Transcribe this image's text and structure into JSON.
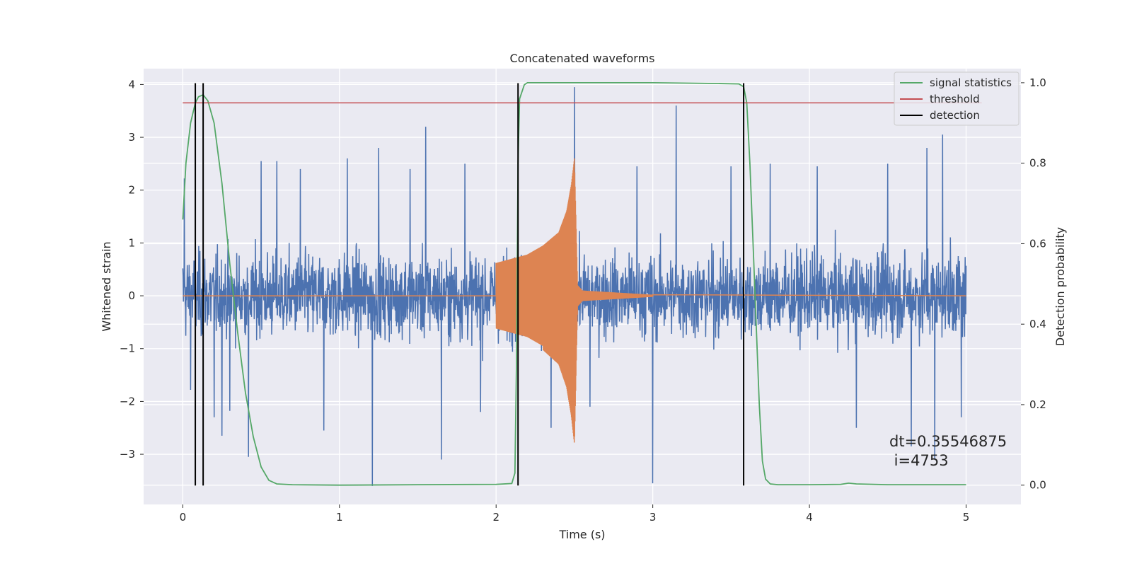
{
  "chart_data": {
    "type": "line",
    "title": "Concatenated waveforms",
    "xlabel": "Time (s)",
    "ylabel": "Whitened strain",
    "y2label": "Detection probability",
    "xlim": [
      -0.25,
      5.35
    ],
    "ylim": [
      -3.95,
      4.3
    ],
    "y2lim": [
      -0.048,
      1.035
    ],
    "xticks": [
      0,
      1,
      2,
      3,
      4,
      5
    ],
    "yticks": [
      -3,
      -2,
      -1,
      0,
      1,
      2,
      3,
      4
    ],
    "y2ticks": [
      0.0,
      0.2,
      0.4,
      0.6,
      0.8,
      1.0
    ],
    "xtick_labels": [
      "0",
      "1",
      "2",
      "3",
      "4",
      "5"
    ],
    "ytick_labels": [
      "−3",
      "−2",
      "−1",
      "0",
      "1",
      "2",
      "3",
      "4"
    ],
    "y2tick_labels": [
      "0.0",
      "0.2",
      "0.4",
      "0.6",
      "0.8",
      "1.0"
    ],
    "grid": true,
    "legend_position": "top-right",
    "legend": [
      {
        "label": "signal statistics",
        "color": "#55a868",
        "kind": "line"
      },
      {
        "label": "threshold",
        "color": "#c44e52",
        "kind": "line"
      },
      {
        "label": "detection",
        "color": "#000000",
        "kind": "line"
      }
    ],
    "annotations": [
      "dt=0.35546875",
      " i=4753"
    ],
    "series": [
      {
        "kind": "noise",
        "color": "#4c72b0",
        "x_range": [
          0,
          5
        ],
        "envelope_1sigma": 0.55,
        "peaks": [
          {
            "x": 0.01,
            "y": 2.22
          },
          {
            "x": 0.05,
            "y": -1.78
          },
          {
            "x": 0.2,
            "y": 2.6
          },
          {
            "x": 0.2,
            "y": -2.3
          },
          {
            "x": 0.25,
            "y": -2.65
          },
          {
            "x": 0.3,
            "y": -2.18
          },
          {
            "x": 0.42,
            "y": -3.05
          },
          {
            "x": 0.5,
            "y": 2.55
          },
          {
            "x": 0.6,
            "y": 2.55
          },
          {
            "x": 0.75,
            "y": 2.4
          },
          {
            "x": 0.9,
            "y": -2.55
          },
          {
            "x": 1.05,
            "y": 2.6
          },
          {
            "x": 1.21,
            "y": -3.6
          },
          {
            "x": 1.25,
            "y": 2.8
          },
          {
            "x": 1.45,
            "y": 2.4
          },
          {
            "x": 1.55,
            "y": 3.2
          },
          {
            "x": 1.65,
            "y": -3.1
          },
          {
            "x": 1.8,
            "y": 2.5
          },
          {
            "x": 1.9,
            "y": -2.2
          },
          {
            "x": 2.35,
            "y": -2.5
          },
          {
            "x": 2.5,
            "y": 3.95
          },
          {
            "x": 2.6,
            "y": -2.1
          },
          {
            "x": 2.9,
            "y": 2.45
          },
          {
            "x": 3.0,
            "y": -3.55
          },
          {
            "x": 3.15,
            "y": 3.6
          },
          {
            "x": 3.5,
            "y": 2.45
          },
          {
            "x": 3.75,
            "y": 2.5
          },
          {
            "x": 4.05,
            "y": 2.45
          },
          {
            "x": 4.3,
            "y": -2.5
          },
          {
            "x": 4.5,
            "y": 2.5
          },
          {
            "x": 4.65,
            "y": -2.85
          },
          {
            "x": 4.75,
            "y": 2.8
          },
          {
            "x": 4.8,
            "y": -3.1
          },
          {
            "x": 4.85,
            "y": 3.05
          },
          {
            "x": 4.97,
            "y": -2.3
          }
        ]
      },
      {
        "kind": "chirp",
        "color": "#dd8452",
        "x": [
          0,
          2.0,
          2.1,
          2.2,
          2.3,
          2.4,
          2.45,
          2.48,
          2.5,
          2.52,
          2.55,
          3.0,
          5.0
        ],
        "amplitude": [
          0,
          0.62,
          0.7,
          0.78,
          0.95,
          1.2,
          1.6,
          2.1,
          2.6,
          0.2,
          0.1,
          0.02,
          0
        ]
      },
      {
        "name": "signal statistics",
        "color": "#55a868",
        "axis": "right",
        "x": [
          0.0,
          0.02,
          0.05,
          0.08,
          0.1,
          0.13,
          0.16,
          0.2,
          0.25,
          0.3,
          0.35,
          0.4,
          0.45,
          0.5,
          0.55,
          0.6,
          0.7,
          1.0,
          1.5,
          2.0,
          2.1,
          2.12,
          2.13,
          2.14,
          2.15,
          2.18,
          2.2,
          2.3,
          3.0,
          3.4,
          3.55,
          3.58,
          3.6,
          3.62,
          3.64,
          3.66,
          3.68,
          3.7,
          3.72,
          3.75,
          3.8,
          4.0,
          4.2,
          4.25,
          4.3,
          4.5,
          5.0
        ],
        "y": [
          0.66,
          0.8,
          0.9,
          0.95,
          0.965,
          0.97,
          0.955,
          0.9,
          0.75,
          0.55,
          0.38,
          0.23,
          0.12,
          0.045,
          0.012,
          0.003,
          0.001,
          0.0,
          0.001,
          0.002,
          0.004,
          0.03,
          0.3,
          0.8,
          0.96,
          0.995,
          1.0,
          1.0,
          1.0,
          0.998,
          0.997,
          0.99,
          0.95,
          0.8,
          0.6,
          0.4,
          0.2,
          0.06,
          0.015,
          0.003,
          0.001,
          0.001,
          0.002,
          0.005,
          0.003,
          0.001,
          0.001
        ]
      },
      {
        "name": "threshold",
        "color": "#c44e52",
        "axis": "right",
        "x": [
          0,
          5.1
        ],
        "y": [
          0.95,
          0.95
        ]
      },
      {
        "name": "detection",
        "color": "#000000",
        "kind": "vlines",
        "x": [
          0.08,
          0.13,
          2.14,
          3.58
        ]
      }
    ]
  }
}
